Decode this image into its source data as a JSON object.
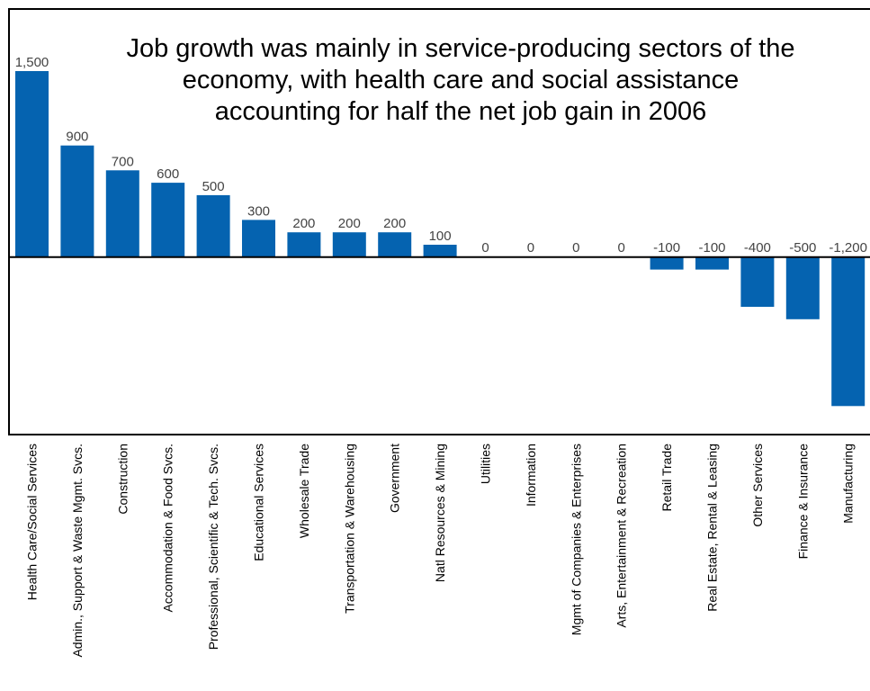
{
  "chart_data": {
    "type": "bar",
    "title_lines": [
      "Job growth was mainly in service-producing sectors of the",
      "economy, with health care and social assistance",
      "accounting for half the net job gain in 2006"
    ],
    "categories": [
      "Health Care/Social Services",
      "Admin., Support & Waste Mgmt. Svcs.",
      "Construction",
      "Accommodation & Food Svcs.",
      "Professional, Scientific & Tech. Svcs.",
      "Educational Services",
      "Wholesale Trade",
      "Transportation & Warehousing",
      "Government",
      "Natl Resources & Mining",
      "Utilities",
      "Information",
      "Mgmt of Companies & Enterprises",
      "Arts, Entertainment & Recreation",
      "Retail Trade",
      "Real Estate, Rental & Leasing",
      "Other Services",
      "Finance & Insurance",
      "Manufacturing"
    ],
    "values": [
      1500,
      900,
      700,
      600,
      500,
      300,
      200,
      200,
      200,
      100,
      0,
      0,
      0,
      0,
      -100,
      -100,
      -400,
      -500,
      -1200
    ],
    "value_labels": [
      "1,500",
      "900",
      "700",
      "600",
      "500",
      "300",
      "200",
      "200",
      "200",
      "100",
      "0",
      "0",
      "0",
      "0",
      "-100",
      "-100",
      "-400",
      "-500",
      "-1,200"
    ],
    "ylim": [
      -1430,
      2000
    ],
    "bar_color": "#0563b0",
    "grid": false,
    "legend": "none"
  }
}
